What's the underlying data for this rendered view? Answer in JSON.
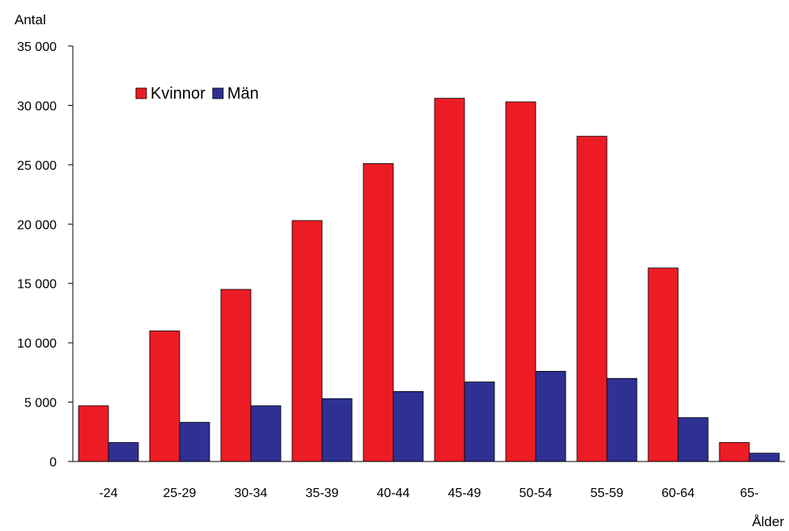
{
  "chart_data": {
    "type": "bar",
    "ylabel": "Antal",
    "xlabel": "Ålder",
    "ylim": [
      0,
      35000
    ],
    "yticks": [
      0,
      5000,
      10000,
      15000,
      20000,
      25000,
      30000,
      35000
    ],
    "ytick_labels": [
      "0",
      "5 000",
      "10 000",
      "15 000",
      "20 000",
      "25 000",
      "30 000",
      "35 000"
    ],
    "categories": [
      "-24",
      "25-29",
      "30-34",
      "35-39",
      "40-44",
      "45-49",
      "50-54",
      "55-59",
      "60-64",
      "65-"
    ],
    "series": [
      {
        "name": "Kvinnor",
        "color": "#ed1c24",
        "values": [
          4700,
          11000,
          14500,
          20300,
          25100,
          30600,
          30300,
          27400,
          16300,
          1600
        ]
      },
      {
        "name": "Män",
        "color": "#2e3192",
        "values": [
          1600,
          3300,
          4700,
          5300,
          5900,
          6700,
          7600,
          7000,
          3700,
          700
        ]
      }
    ],
    "legend_position": "top-left",
    "grid": false
  }
}
